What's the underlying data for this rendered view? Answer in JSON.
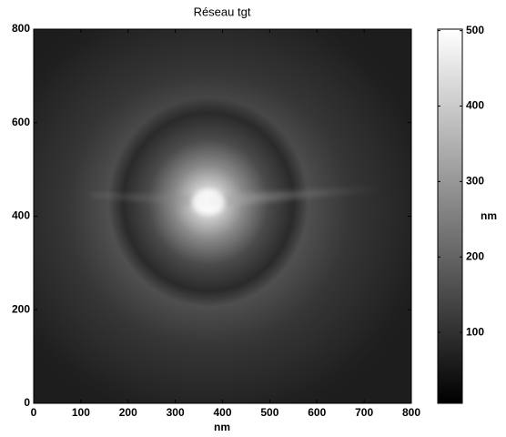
{
  "chart_data": {
    "type": "image",
    "title": "Réseau tgt",
    "xlabel": "nm",
    "xlim": [
      0,
      800
    ],
    "ylim": [
      0,
      800
    ],
    "xticks": [
      0,
      100,
      200,
      300,
      400,
      500,
      600,
      700,
      800
    ],
    "yticks": [
      0,
      200,
      400,
      600,
      800
    ],
    "colormap": "gray",
    "colorbar": {
      "label": "nm",
      "lim": [
        6,
        502
      ],
      "ticks": [
        100,
        200,
        300,
        400,
        500
      ]
    }
  }
}
